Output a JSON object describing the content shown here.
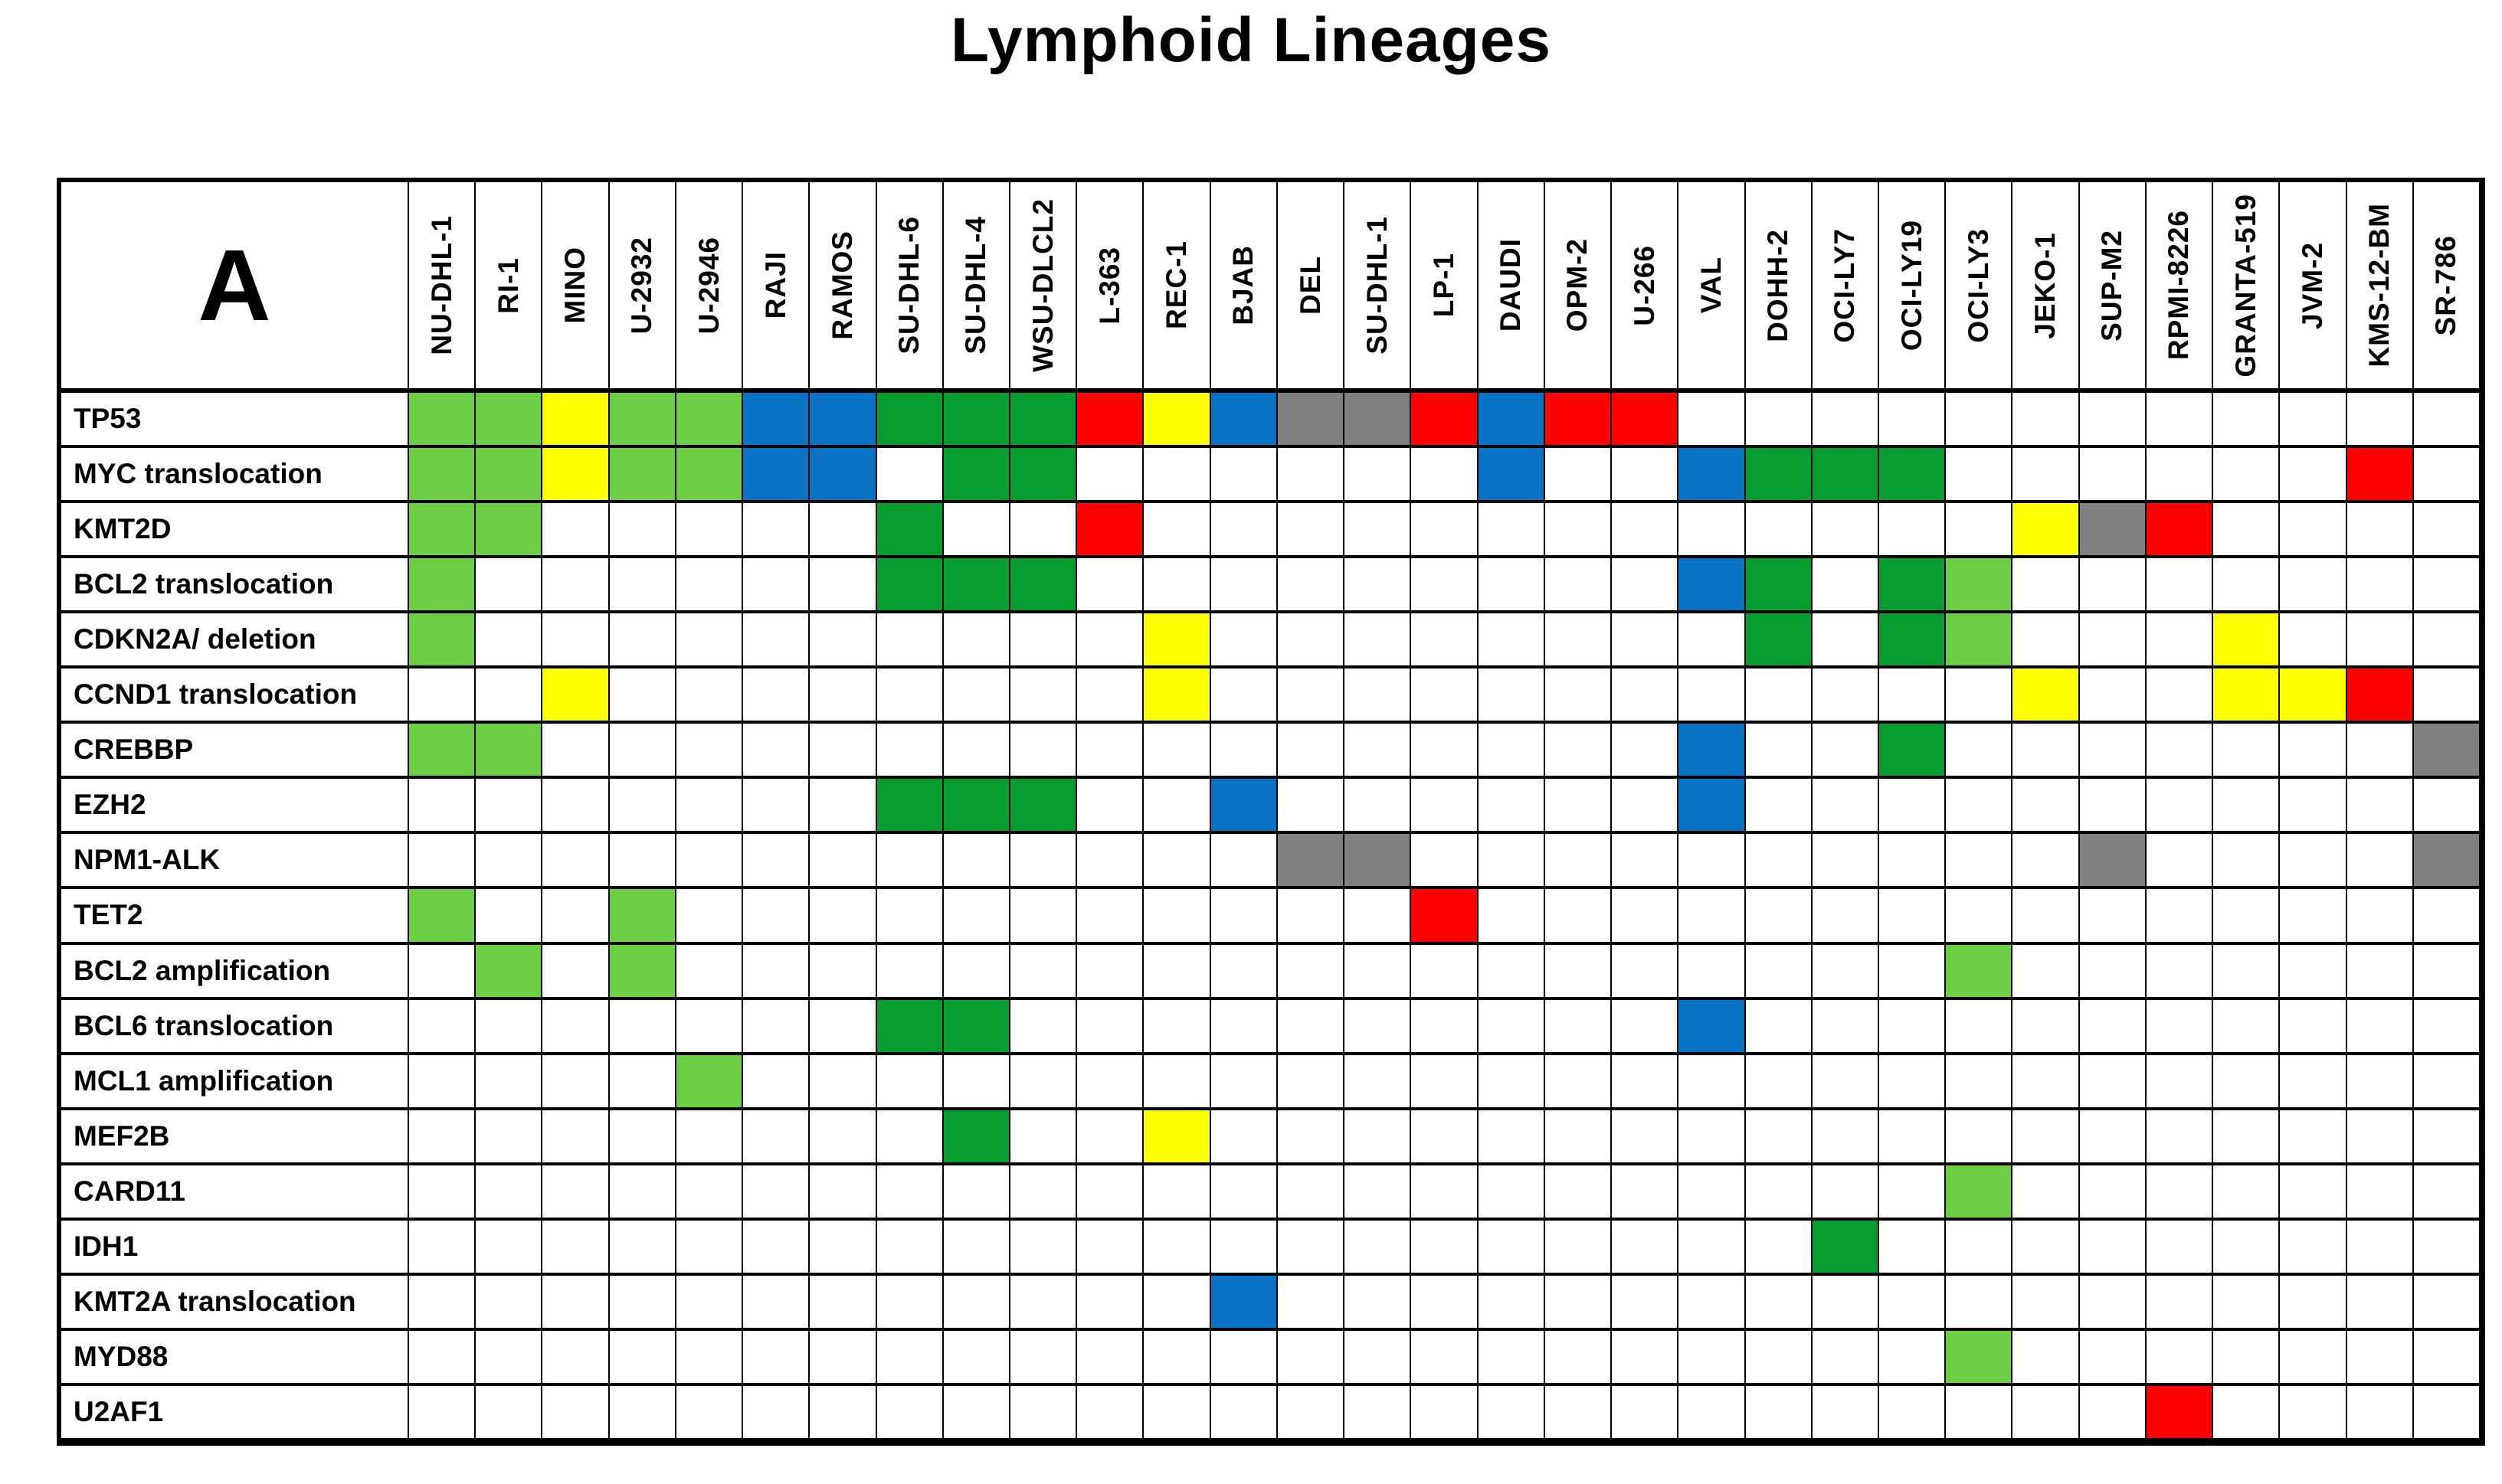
{
  "title": "Lymphoid Lineages",
  "panel_label": "A",
  "chart_data": {
    "type": "heatmap",
    "title": "Lymphoid Lineages",
    "grid": true,
    "columns": [
      "NU-DHL-1",
      "RI-1",
      "MINO",
      "U-2932",
      "U-2946",
      "RAJI",
      "RAMOS",
      "SU-DHL-6",
      "SU-DHL-4",
      "WSU-DLCL2",
      "L-363",
      "REC-1",
      "BJAB",
      "DEL",
      "SU-DHL-1",
      "LP-1",
      "DAUDI",
      "OPM-2",
      "U-266",
      "VAL",
      "DOHH-2",
      "OCI-LY7",
      "OCI-LY19",
      "OCI-LY3",
      "JEKO-1",
      "SUP-M2",
      "RPMI-8226",
      "GRANTA-519",
      "JVM-2",
      "KMS-12-BM",
      "SR-786"
    ],
    "rows": [
      "TP53",
      "MYC translocation",
      "KMT2D",
      "BCL2 translocation",
      "CDKN2A/ deletion",
      "CCND1 translocation",
      "CREBBP",
      "EZH2",
      "NPM1-ALK",
      "TET2",
      "BCL2 amplification",
      "BCL6 translocation",
      "MCL1 amplification",
      "MEF2B",
      "CARD11",
      "IDH1",
      "KMT2A translocation",
      "MYD88",
      "U2AF1"
    ],
    "cell_codes": {
      "L": "light_green",
      "D": "dark_green",
      "B": "blue",
      "Y": "yellow",
      "R": "red",
      "G": "gray",
      "": "white"
    },
    "colors": {
      "light_green": "#6CCE44",
      "dark_green": "#069C2F",
      "blue": "#0873C5",
      "yellow": "#FFFF00",
      "red": "#FE0000",
      "gray": "#808080",
      "white": "#FFFFFF"
    },
    "matrix": [
      [
        "L",
        "L",
        "Y",
        "L",
        "L",
        "B",
        "B",
        "D",
        "D",
        "D",
        "R",
        "Y",
        "B",
        "G",
        "G",
        "R",
        "B",
        "R",
        "R",
        "",
        "",
        "",
        "",
        "",
        "",
        "",
        "",
        "",
        "",
        "",
        ""
      ],
      [
        "L",
        "L",
        "Y",
        "L",
        "L",
        "B",
        "B",
        "",
        "D",
        "D",
        "",
        "",
        "",
        "",
        "",
        "",
        "B",
        "",
        "",
        "B",
        "D",
        "D",
        "D",
        "",
        "",
        "",
        "",
        "",
        "",
        "R",
        ""
      ],
      [
        "L",
        "L",
        "",
        "",
        "",
        "",
        "",
        "D",
        "",
        "",
        "R",
        "",
        "",
        "",
        "",
        "",
        "",
        "",
        "",
        "",
        "",
        "",
        "",
        "",
        "Y",
        "G",
        "R",
        "",
        "",
        "",
        ""
      ],
      [
        "L",
        "",
        "",
        "",
        "",
        "",
        "",
        "D",
        "D",
        "D",
        "",
        "",
        "",
        "",
        "",
        "",
        "",
        "",
        "",
        "B",
        "D",
        "",
        "D",
        "L",
        "",
        "",
        "",
        "",
        "",
        "",
        ""
      ],
      [
        "L",
        "",
        "",
        "",
        "",
        "",
        "",
        "",
        "",
        "",
        "",
        "Y",
        "",
        "",
        "",
        "",
        "",
        "",
        "",
        "",
        "D",
        "",
        "D",
        "L",
        "",
        "",
        "",
        "Y",
        "",
        "",
        ""
      ],
      [
        "",
        "",
        "Y",
        "",
        "",
        "",
        "",
        "",
        "",
        "",
        "",
        "Y",
        "",
        "",
        "",
        "",
        "",
        "",
        "",
        "",
        "",
        "",
        "",
        "",
        "Y",
        "",
        "",
        "Y",
        "Y",
        "R",
        ""
      ],
      [
        "L",
        "L",
        "",
        "",
        "",
        "",
        "",
        "",
        "",
        "",
        "",
        "",
        "",
        "",
        "",
        "",
        "",
        "",
        "",
        "B",
        "",
        "",
        "D",
        "",
        "",
        "",
        "",
        "",
        "",
        "",
        "G"
      ],
      [
        "",
        "",
        "",
        "",
        "",
        "",
        "",
        "D",
        "D",
        "D",
        "",
        "",
        "B",
        "",
        "",
        "",
        "",
        "",
        "",
        "B",
        "",
        "",
        "",
        "",
        "",
        "",
        "",
        "",
        "",
        "",
        ""
      ],
      [
        "",
        "",
        "",
        "",
        "",
        "",
        "",
        "",
        "",
        "",
        "",
        "",
        "",
        "G",
        "G",
        "",
        "",
        "",
        "",
        "",
        "",
        "",
        "",
        "",
        "",
        "G",
        "",
        "",
        "",
        "",
        "G"
      ],
      [
        "L",
        "",
        "",
        "L",
        "",
        "",
        "",
        "",
        "",
        "",
        "",
        "",
        "",
        "",
        "",
        "R",
        "",
        "",
        "",
        "",
        "",
        "",
        "",
        "",
        "",
        "",
        "",
        "",
        "",
        "",
        ""
      ],
      [
        "",
        "L",
        "",
        "L",
        "",
        "",
        "",
        "",
        "",
        "",
        "",
        "",
        "",
        "",
        "",
        "",
        "",
        "",
        "",
        "",
        "",
        "",
        "",
        "L",
        "",
        "",
        "",
        "",
        "",
        "",
        ""
      ],
      [
        "",
        "",
        "",
        "",
        "",
        "",
        "",
        "D",
        "D",
        "",
        "",
        "",
        "",
        "",
        "",
        "",
        "",
        "",
        "",
        "B",
        "",
        "",
        "",
        "",
        "",
        "",
        "",
        "",
        "",
        "",
        ""
      ],
      [
        "",
        "",
        "",
        "",
        "L",
        "",
        "",
        "",
        "",
        "",
        "",
        "",
        "",
        "",
        "",
        "",
        "",
        "",
        "",
        "",
        "",
        "",
        "",
        "",
        "",
        "",
        "",
        "",
        "",
        "",
        ""
      ],
      [
        "",
        "",
        "",
        "",
        "",
        "",
        "",
        "",
        "D",
        "",
        "",
        "Y",
        "",
        "",
        "",
        "",
        "",
        "",
        "",
        "",
        "",
        "",
        "",
        "",
        "",
        "",
        "",
        "",
        "",
        "",
        ""
      ],
      [
        "",
        "",
        "",
        "",
        "",
        "",
        "",
        "",
        "",
        "",
        "",
        "",
        "",
        "",
        "",
        "",
        "",
        "",
        "",
        "",
        "",
        "",
        "",
        "L",
        "",
        "",
        "",
        "",
        "",
        "",
        ""
      ],
      [
        "",
        "",
        "",
        "",
        "",
        "",
        "",
        "",
        "",
        "",
        "",
        "",
        "",
        "",
        "",
        "",
        "",
        "",
        "",
        "",
        "",
        "D",
        "",
        "",
        "",
        "",
        "",
        "",
        "",
        "",
        ""
      ],
      [
        "",
        "",
        "",
        "",
        "",
        "",
        "",
        "",
        "",
        "",
        "",
        "",
        "B",
        "",
        "",
        "",
        "",
        "",
        "",
        "",
        "",
        "",
        "",
        "",
        "",
        "",
        "",
        "",
        "",
        "",
        ""
      ],
      [
        "",
        "",
        "",
        "",
        "",
        "",
        "",
        "",
        "",
        "",
        "",
        "",
        "",
        "",
        "",
        "",
        "",
        "",
        "",
        "",
        "",
        "",
        "",
        "L",
        "",
        "",
        "",
        "",
        "",
        "",
        ""
      ],
      [
        "",
        "",
        "",
        "",
        "",
        "",
        "",
        "",
        "",
        "",
        "",
        "",
        "",
        "",
        "",
        "",
        "",
        "",
        "",
        "",
        "",
        "",
        "",
        "",
        "",
        "",
        "R",
        "",
        "",
        "",
        ""
      ]
    ]
  }
}
